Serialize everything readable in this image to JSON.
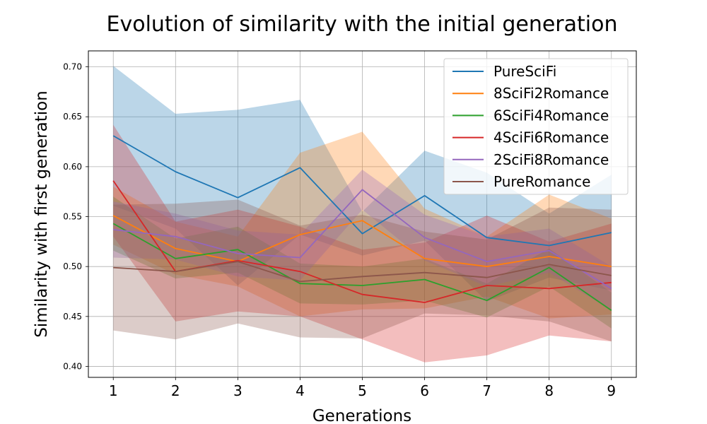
{
  "chart_data": {
    "type": "line",
    "title": "Evolution of similarity with the initial generation",
    "xlabel": "Generations",
    "ylabel": "Similarity with first generation",
    "x": [
      1,
      2,
      3,
      4,
      5,
      6,
      7,
      8,
      9
    ],
    "x_ticks": [
      "1",
      "2",
      "3",
      "4",
      "5",
      "6",
      "7",
      "8",
      "9"
    ],
    "y_ticks": [
      "0.40",
      "0.45",
      "0.50",
      "0.55",
      "0.60",
      "0.65",
      "0.70"
    ],
    "xlim": [
      0.6,
      9.4
    ],
    "ylim": [
      0.389,
      0.716
    ],
    "grid": true,
    "legend_position": "top-right",
    "series": [
      {
        "name": "PureSciFi",
        "color": "#1f77b4",
        "values": [
          0.631,
          0.595,
          0.569,
          0.599,
          0.533,
          0.571,
          0.529,
          0.521,
          0.534
        ],
        "upper": [
          0.701,
          0.653,
          0.657,
          0.667,
          0.555,
          0.616,
          0.594,
          0.553,
          0.592
        ],
        "lower": [
          0.561,
          0.538,
          0.481,
          0.532,
          0.511,
          0.526,
          0.465,
          0.489,
          0.476
        ]
      },
      {
        "name": "8SciFi2Romance",
        "color": "#ff7f0e",
        "values": [
          0.551,
          0.518,
          0.505,
          0.532,
          0.546,
          0.508,
          0.5,
          0.51,
          0.5
        ],
        "upper": [
          0.58,
          0.545,
          0.53,
          0.614,
          0.635,
          0.558,
          0.53,
          0.572,
          0.548
        ],
        "lower": [
          0.522,
          0.492,
          0.48,
          0.45,
          0.457,
          0.458,
          0.47,
          0.448,
          0.452
        ]
      },
      {
        "name": "6SciFi4Romance",
        "color": "#2ca02c",
        "values": [
          0.543,
          0.508,
          0.517,
          0.483,
          0.481,
          0.487,
          0.466,
          0.499,
          0.456
        ],
        "upper": [
          0.57,
          0.528,
          0.54,
          0.503,
          0.5,
          0.508,
          0.483,
          0.518,
          0.474
        ],
        "lower": [
          0.516,
          0.488,
          0.494,
          0.463,
          0.462,
          0.466,
          0.449,
          0.48,
          0.438
        ]
      },
      {
        "name": "4SciFi6Romance",
        "color": "#d62728",
        "values": [
          0.586,
          0.495,
          0.506,
          0.495,
          0.472,
          0.464,
          0.481,
          0.478,
          0.484
        ],
        "upper": [
          0.642,
          0.545,
          0.557,
          0.54,
          0.517,
          0.524,
          0.551,
          0.525,
          0.543
        ],
        "lower": [
          0.53,
          0.445,
          0.455,
          0.45,
          0.427,
          0.404,
          0.411,
          0.431,
          0.425
        ]
      },
      {
        "name": "2SciFi8Romance",
        "color": "#9467bd",
        "values": [
          0.537,
          0.53,
          0.513,
          0.509,
          0.577,
          0.529,
          0.505,
          0.516,
          0.478
        ],
        "upper": [
          0.565,
          0.553,
          0.536,
          0.532,
          0.597,
          0.552,
          0.53,
          0.538,
          0.5
        ],
        "lower": [
          0.509,
          0.507,
          0.49,
          0.486,
          0.557,
          0.506,
          0.48,
          0.494,
          0.456
        ]
      },
      {
        "name": "PureRomance",
        "color": "#8c564b",
        "values": [
          0.499,
          0.495,
          0.505,
          0.485,
          0.49,
          0.494,
          0.489,
          0.502,
          0.491
        ],
        "upper": [
          0.562,
          0.563,
          0.567,
          0.541,
          0.552,
          0.535,
          0.527,
          0.559,
          0.557
        ],
        "lower": [
          0.436,
          0.427,
          0.443,
          0.429,
          0.428,
          0.453,
          0.451,
          0.445,
          0.425
        ]
      }
    ]
  }
}
